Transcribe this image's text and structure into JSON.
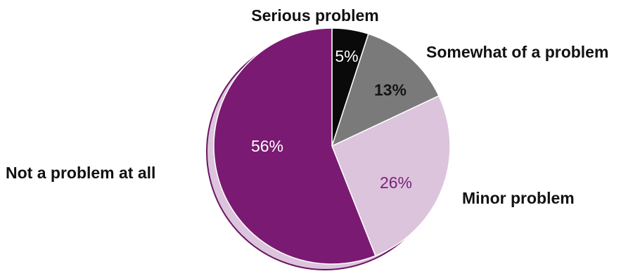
{
  "chart_data": {
    "type": "pie",
    "slices": [
      {
        "label": "Serious problem",
        "value": 5,
        "value_label": "5%",
        "color": "#0a0a0a",
        "text_color": "#ffffff",
        "text_weight": "normal"
      },
      {
        "label": "Somewhat of a problem",
        "value": 13,
        "value_label": "13%",
        "color": "#7a7a7a",
        "text_color": "#151515",
        "text_weight": "bold"
      },
      {
        "label": "Minor problem",
        "value": 26,
        "value_label": "26%",
        "color": "#dcc4dc",
        "text_color": "#7a1f7a",
        "text_weight": "normal"
      },
      {
        "label": "Not a problem at all",
        "value": 56,
        "value_label": "56%",
        "color": "#7a1a72",
        "text_color": "#ffffff",
        "text_weight": "normal"
      }
    ],
    "start_angle": "12 o'clock",
    "direction": "clockwise",
    "shadow_color": "#dcc4dc",
    "outline_color": "#6a1462",
    "legend": "none (labels placed beside slices)"
  }
}
